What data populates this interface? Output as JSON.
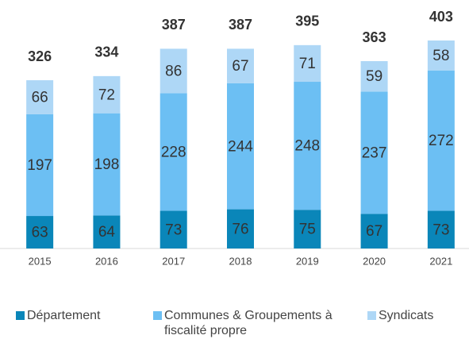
{
  "chart_data": {
    "type": "stacked-bar",
    "categories": [
      "2015",
      "2016",
      "2017",
      "2018",
      "2019",
      "2020",
      "2021"
    ],
    "series": [
      {
        "name": "Département",
        "color": "#0a86b9",
        "values": [
          63,
          64,
          73,
          76,
          75,
          67,
          73
        ]
      },
      {
        "name": "Communes & Groupements à fiscalité propre",
        "color": "#6cbff3",
        "values": [
          197,
          198,
          228,
          244,
          248,
          237,
          272
        ]
      },
      {
        "name": "Syndicats",
        "color": "#aed7f6",
        "values": [
          66,
          72,
          86,
          67,
          71,
          59,
          58
        ]
      }
    ],
    "totals": [
      326,
      334,
      387,
      387,
      395,
      363,
      403
    ],
    "legend": "bottom"
  }
}
